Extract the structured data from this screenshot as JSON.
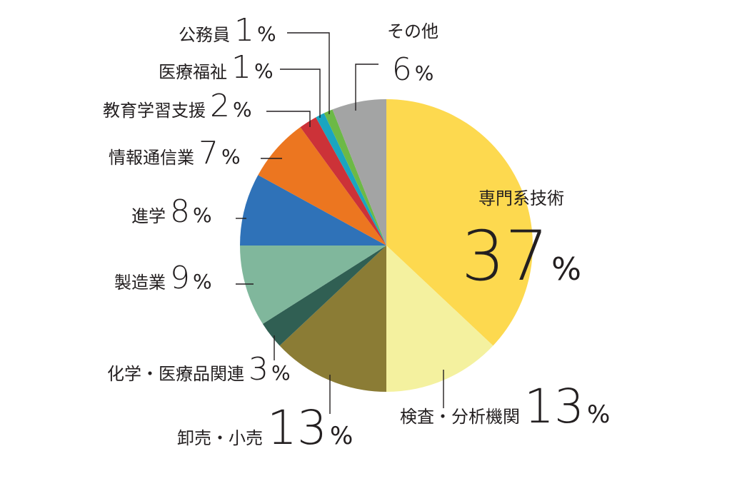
{
  "chart_data": {
    "type": "pie",
    "slices": [
      {
        "name": "専門系技術",
        "value": 37,
        "color": "#fdd94f"
      },
      {
        "name": "検査・分析機関",
        "value": 13,
        "color": "#f4f19f"
      },
      {
        "name": "卸売・小売",
        "value": 13,
        "color": "#8b7c35"
      },
      {
        "name": "化学・医療品関連",
        "value": 3,
        "color": "#305f53"
      },
      {
        "name": "製造業",
        "value": 9,
        "color": "#80b79c"
      },
      {
        "name": "進学",
        "value": 8,
        "color": "#2f72b8"
      },
      {
        "name": "情報通信業",
        "value": 7,
        "color": "#ec7620"
      },
      {
        "name": "教育学習支援",
        "value": 2,
        "color": "#cc3238"
      },
      {
        "name": "医療福祉",
        "value": 1,
        "color": "#1aa5c0"
      },
      {
        "name": "公務員",
        "value": 1,
        "color": "#6cb946"
      },
      {
        "name": "その他",
        "value": 6,
        "color": "#a3a4a4"
      }
    ],
    "percent_sign": "%",
    "title": ""
  }
}
